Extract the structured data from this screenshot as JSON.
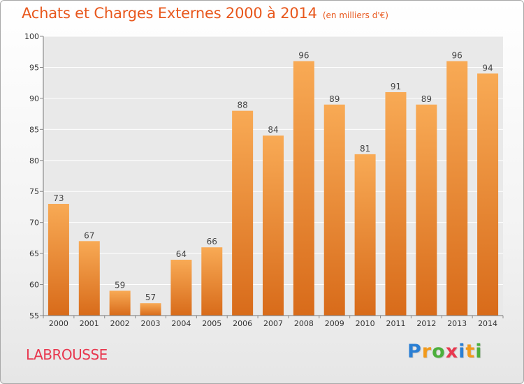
{
  "header": {
    "title": "Achats et Charges Externes 2000 à 2014",
    "subtitle": "(en milliers d'€)"
  },
  "footer": {
    "commune": "LABROUSSE",
    "brand": {
      "p": "P",
      "r": "r",
      "o": "o",
      "x": "x",
      "i1": "i",
      "t": "t",
      "i2": "i"
    }
  },
  "colors": {
    "bar_light": "#f8aa55",
    "bar_dark": "#d86b1a",
    "accent": "#e8571c",
    "commune": "#e8384f"
  },
  "chart_data": {
    "type": "bar",
    "title": "Achats et Charges Externes 2000 à 2014",
    "subtitle": "(en milliers d'€)",
    "categories": [
      "2000",
      "2001",
      "2002",
      "2003",
      "2004",
      "2005",
      "2006",
      "2007",
      "2008",
      "2009",
      "2010",
      "2011",
      "2012",
      "2013",
      "2014"
    ],
    "values": [
      73,
      67,
      59,
      57,
      64,
      66,
      88,
      84,
      96,
      89,
      81,
      91,
      89,
      96,
      94
    ],
    "ylim": [
      55,
      100
    ],
    "yticks": [
      55,
      60,
      65,
      70,
      75,
      80,
      85,
      90,
      95,
      100
    ],
    "grid": true,
    "xlabel": "",
    "ylabel": ""
  }
}
